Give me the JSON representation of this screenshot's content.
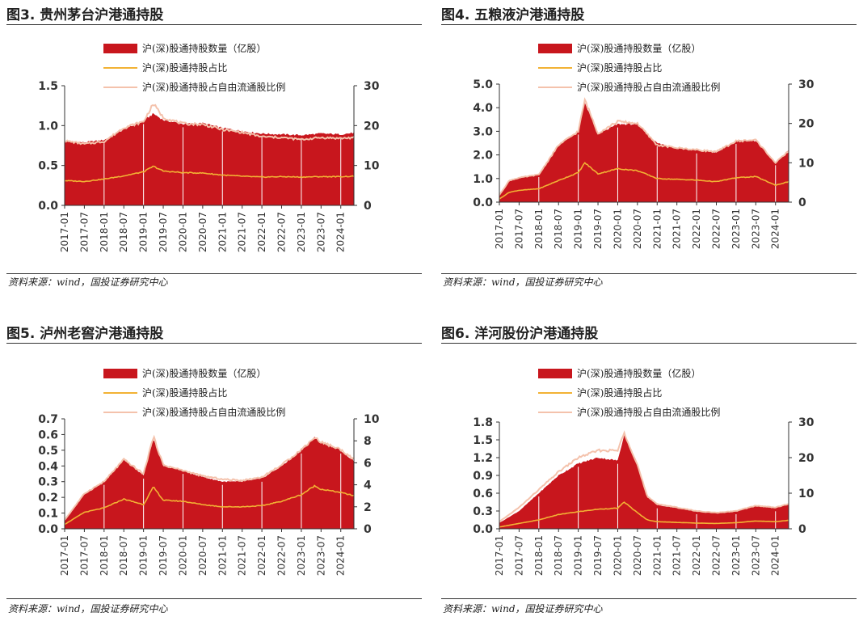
{
  "chart_data": [
    {
      "type": "area",
      "panel_title": "图3. 贵州茅台沪港通持股",
      "legend": [
        {
          "label": "沪(深)股通持股数量（亿股）",
          "color": "#C8161D",
          "kind": "area"
        },
        {
          "label": "沪(深)股通持股占比",
          "color": "#F2B234",
          "kind": "line"
        },
        {
          "label": "沪(深)股通持股占自由流通股比例",
          "color": "#F4C2AC",
          "kind": "line"
        }
      ],
      "x_ticks": [
        "2017-01",
        "2017-07",
        "2018-01",
        "2018-07",
        "2019-01",
        "2019-07",
        "2020-01",
        "2020-07",
        "2021-01",
        "2021-07",
        "2022-01",
        "2022-07",
        "2023-01",
        "2023-07",
        "2024-01"
      ],
      "x_range": [
        "2017-01",
        "2024-05"
      ],
      "y_left": {
        "min": 0,
        "max": 1.5,
        "ticks": [
          "0.0",
          "0.5",
          "1.0",
          "1.5"
        ]
      },
      "y_right": {
        "min": 0,
        "max": 30,
        "ticks": [
          "0",
          "10",
          "20",
          "30"
        ]
      },
      "x": [
        "2017-01",
        "2017-07",
        "2018-01",
        "2018-07",
        "2019-01",
        "2019-04",
        "2019-07",
        "2020-01",
        "2020-07",
        "2021-01",
        "2021-07",
        "2022-01",
        "2022-07",
        "2023-01",
        "2023-07",
        "2024-01",
        "2024-05"
      ],
      "series": [
        {
          "name": "沪(深)股通持股数量（亿股）",
          "axis": "left",
          "values": [
            0.8,
            0.79,
            0.82,
            0.95,
            1.06,
            1.15,
            1.07,
            1.02,
            1.03,
            0.97,
            0.93,
            0.9,
            0.89,
            0.88,
            0.9,
            0.89,
            0.91
          ]
        },
        {
          "name": "沪(深)股通持股占比",
          "axis": "right",
          "values": [
            6.2,
            6.0,
            6.6,
            7.4,
            8.4,
            9.8,
            8.6,
            8.2,
            8.1,
            7.6,
            7.3,
            7.1,
            7.2,
            7.1,
            7.2,
            7.2,
            7.3
          ]
        },
        {
          "name": "沪(深)股通持股占自由流通股比例",
          "axis": "right",
          "values": [
            16.2,
            15.4,
            16.0,
            19.5,
            21.0,
            25.5,
            22.0,
            20.5,
            20.3,
            19.0,
            18.3,
            17.2,
            17.0,
            16.5,
            17.0,
            16.8,
            17.0
          ]
        }
      ]
    },
    {
      "type": "area",
      "panel_title": "图4. 五粮液沪港通持股",
      "legend": [
        {
          "label": "沪(深)股通持股数量（亿股）",
          "color": "#C8161D",
          "kind": "area"
        },
        {
          "label": "沪(深)股通持股占比",
          "color": "#F2B234",
          "kind": "line"
        },
        {
          "label": "沪(深)股通持股占自由流通股比例",
          "color": "#F4C2AC",
          "kind": "line"
        }
      ],
      "x_ticks": [
        "2017-01",
        "2017-07",
        "2018-01",
        "2018-07",
        "2019-01",
        "2019-07",
        "2020-01",
        "2020-07",
        "2021-01",
        "2021-07",
        "2022-01",
        "2022-07",
        "2023-01",
        "2023-07",
        "2024-01"
      ],
      "x_range": [
        "2017-01",
        "2024-05"
      ],
      "y_left": {
        "min": 0,
        "max": 5,
        "ticks": [
          "0.0",
          "1.0",
          "2.0",
          "3.0",
          "4.0",
          "5.0"
        ]
      },
      "y_right": {
        "min": 0,
        "max": 30,
        "ticks": [
          "0",
          "10",
          "20",
          "30"
        ]
      },
      "x": [
        "2017-01",
        "2017-04",
        "2017-07",
        "2018-01",
        "2018-07",
        "2019-01",
        "2019-03",
        "2019-07",
        "2020-01",
        "2020-07",
        "2021-01",
        "2021-07",
        "2022-01",
        "2022-07",
        "2023-01",
        "2023-07",
        "2024-01",
        "2024-05"
      ],
      "series": [
        {
          "name": "沪(深)股通持股数量（亿股）",
          "axis": "left",
          "values": [
            0.3,
            0.9,
            1.0,
            1.2,
            2.4,
            3.0,
            4.2,
            2.9,
            3.3,
            3.3,
            2.5,
            2.3,
            2.2,
            2.1,
            2.6,
            2.6,
            1.7,
            2.2
          ]
        },
        {
          "name": "沪(深)股通持股占比",
          "axis": "right",
          "values": [
            0.8,
            2.5,
            3.0,
            3.4,
            5.5,
            7.5,
            10.0,
            7.2,
            8.5,
            8.0,
            6.0,
            5.8,
            5.6,
            5.2,
            6.2,
            6.5,
            4.3,
            5.2
          ]
        },
        {
          "name": "沪(深)股通持股占自由流通股比例",
          "axis": "right",
          "values": [
            1.8,
            5.5,
            6.2,
            7.0,
            14.5,
            18.0,
            26.0,
            17.5,
            20.5,
            20.0,
            14.5,
            13.8,
            13.3,
            12.8,
            15.5,
            15.8,
            10.0,
            13.0
          ]
        }
      ]
    },
    {
      "type": "area",
      "panel_title": "图5. 泸州老窖沪港通持股",
      "legend": [
        {
          "label": "沪(深)股通持股数量（亿股）",
          "color": "#C8161D",
          "kind": "area"
        },
        {
          "label": "沪(深)股通持股占比",
          "color": "#F2B234",
          "kind": "line"
        },
        {
          "label": "沪(深)股通持股占自由流通股比例",
          "color": "#F4C2AC",
          "kind": "line"
        }
      ],
      "x_ticks": [
        "2017-01",
        "2017-07",
        "2018-01",
        "2018-07",
        "2019-01",
        "2019-07",
        "2020-01",
        "2020-07",
        "2021-01",
        "2021-07",
        "2022-01",
        "2022-07",
        "2023-01",
        "2023-07",
        "2024-01"
      ],
      "x_range": [
        "2017-01",
        "2024-05"
      ],
      "y_left": {
        "min": 0,
        "max": 0.7,
        "ticks": [
          "0.0",
          "0.1",
          "0.2",
          "0.3",
          "0.4",
          "0.5",
          "0.6",
          "0.7"
        ]
      },
      "y_right": {
        "min": 0,
        "max": 10,
        "ticks": [
          "0",
          "2",
          "4",
          "6",
          "8",
          "10"
        ]
      },
      "x": [
        "2017-01",
        "2017-07",
        "2018-01",
        "2018-07",
        "2019-01",
        "2019-04",
        "2019-07",
        "2020-01",
        "2020-07",
        "2021-01",
        "2021-07",
        "2022-01",
        "2022-07",
        "2023-01",
        "2023-05",
        "2023-07",
        "2024-01",
        "2024-05"
      ],
      "series": [
        {
          "name": "沪(深)股通持股数量（亿股）",
          "axis": "left",
          "values": [
            0.05,
            0.22,
            0.3,
            0.44,
            0.34,
            0.57,
            0.4,
            0.37,
            0.33,
            0.3,
            0.3,
            0.32,
            0.4,
            0.5,
            0.58,
            0.55,
            0.5,
            0.43
          ]
        },
        {
          "name": "沪(深)股通持股占比",
          "axis": "right",
          "values": [
            0.4,
            1.5,
            1.9,
            2.7,
            2.2,
            3.8,
            2.6,
            2.5,
            2.2,
            2.0,
            2.0,
            2.1,
            2.5,
            3.1,
            3.9,
            3.6,
            3.3,
            3.0
          ]
        },
        {
          "name": "沪(深)股通持股占自由流通股比例",
          "axis": "right",
          "values": [
            0.8,
            3.2,
            4.3,
            6.3,
            5.0,
            8.4,
            5.8,
            5.3,
            4.8,
            4.5,
            4.4,
            4.7,
            5.8,
            7.2,
            8.3,
            7.9,
            7.2,
            6.3
          ]
        }
      ]
    },
    {
      "type": "area",
      "panel_title": "图6. 洋河股份沪港通持股",
      "legend": [
        {
          "label": "沪(深)股通持股数量（亿股）",
          "color": "#C8161D",
          "kind": "area"
        },
        {
          "label": "沪(深)股通持股占比",
          "color": "#F2B234",
          "kind": "line"
        },
        {
          "label": "沪(深)股通持股占自由流通股比例",
          "color": "#F4C2AC",
          "kind": "line"
        }
      ],
      "x_ticks": [
        "2017-01",
        "2017-07",
        "2018-01",
        "2018-07",
        "2019-01",
        "2019-07",
        "2020-01",
        "2020-07",
        "2021-01",
        "2021-07",
        "2022-01",
        "2022-07",
        "2023-01",
        "2023-07",
        "2024-01"
      ],
      "x_range": [
        "2017-01",
        "2024-05"
      ],
      "y_left": {
        "min": 0,
        "max": 1.8,
        "ticks": [
          "0.0",
          "0.3",
          "0.6",
          "0.9",
          "1.2",
          "1.5",
          "1.8"
        ]
      },
      "y_right": {
        "min": 0,
        "max": 30,
        "ticks": [
          "0",
          "10",
          "20",
          "30"
        ]
      },
      "x": [
        "2017-01",
        "2017-07",
        "2018-01",
        "2018-07",
        "2019-01",
        "2019-07",
        "2020-01",
        "2020-03",
        "2020-07",
        "2020-10",
        "2021-01",
        "2021-07",
        "2022-01",
        "2022-07",
        "2023-01",
        "2023-07",
        "2024-01",
        "2024-05"
      ],
      "series": [
        {
          "name": "沪(深)股通持股数量（亿股）",
          "axis": "left",
          "values": [
            0.1,
            0.3,
            0.6,
            0.9,
            1.1,
            1.2,
            1.15,
            1.6,
            1.1,
            0.55,
            0.4,
            0.35,
            0.3,
            0.28,
            0.3,
            0.38,
            0.35,
            0.42
          ]
        },
        {
          "name": "沪(深)股通持股占比",
          "axis": "right",
          "values": [
            0.5,
            1.5,
            2.5,
            4.0,
            4.8,
            5.5,
            5.8,
            7.5,
            4.5,
            2.5,
            2.0,
            1.8,
            1.6,
            1.5,
            1.7,
            2.2,
            2.0,
            2.4
          ]
        },
        {
          "name": "沪(深)股通持股占自由流通股比例",
          "axis": "right",
          "values": [
            2.0,
            6.0,
            11.0,
            16.0,
            20.0,
            22.0,
            22.0,
            27.0,
            18.0,
            9.0,
            7.0,
            6.0,
            5.0,
            4.5,
            5.0,
            6.5,
            6.0,
            7.0
          ]
        }
      ]
    }
  ],
  "source_text": "资料来源：wind，国投证券研究中心",
  "colors": {
    "bar": "#C8161D",
    "share": "#F2B234",
    "free_float": "#F4C2AC",
    "axis": "#333333"
  }
}
